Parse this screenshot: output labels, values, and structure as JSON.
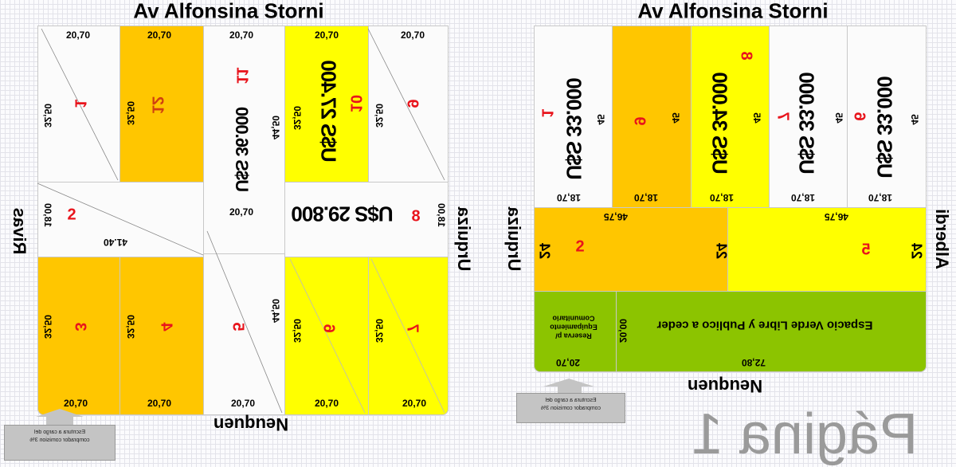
{
  "left_plan": {
    "street_top": "Av Alfonsina Storni",
    "street_bottom": "Neuquen",
    "street_left": "Rivas",
    "street_right": "Urquiza",
    "lots": {
      "l1": "1",
      "l12": "12",
      "l11": "11",
      "l10": "10",
      "l9": "9",
      "l2": "2",
      "l8": "8",
      "l3": "3",
      "l4": "4",
      "l5": "5",
      "l6": "6",
      "l7": "7"
    },
    "prices": {
      "l11": "U$S 36.000",
      "l10": "U$S 27.400",
      "l8": "U$S 29.800"
    },
    "dims": {
      "front": "20,70",
      "depth": "32,50",
      "depth_center": "44,50",
      "side": "18,00",
      "diag": "41.40"
    },
    "note": "Escritura a cargo del comprador comision 3%"
  },
  "right_plan": {
    "street_top": "Av Alfonsina Storni",
    "street_bottom": "Neuquen",
    "street_left": "Urquiza",
    "street_right": "Alberdi",
    "lots": {
      "l1": "1",
      "l9": "9",
      "l8": "8",
      "l7": "7",
      "l6": "6",
      "l2": "2",
      "l5": "5"
    },
    "prices": {
      "l1": "U$S 33.000",
      "l8": "U$S 34.000",
      "l7": "U$S 33.000",
      "l6": "U$S 33.000"
    },
    "dims": {
      "depth": "45",
      "front": "18,70",
      "wide": "46,75",
      "mid_depth": "24",
      "green_depth": "20,00",
      "reserve_front": "20,70",
      "green_front": "72,80"
    },
    "reserve_label": "Reserva p/ Equipamiento Comunitario",
    "green_label": "Espacio Verde Libre y Publico a ceder",
    "note": "Escritura a cargo del comprador comision 3%"
  },
  "watermark": "Página 1",
  "colors": {
    "orange": "#ffc600",
    "yellow": "#ffff00",
    "green": "#8cc400",
    "lot_number": "#e8141c"
  }
}
